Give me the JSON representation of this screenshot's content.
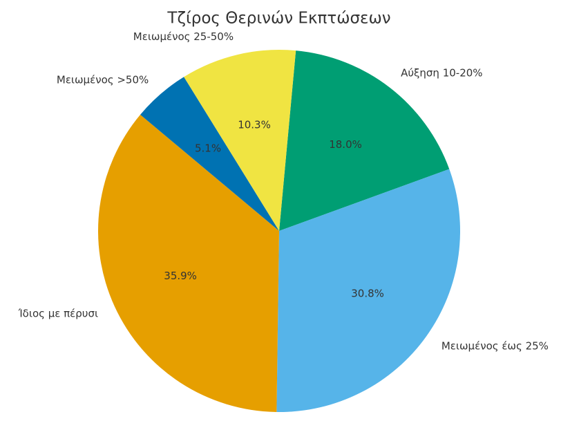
{
  "chart_data": {
    "type": "pie",
    "title": "Τζίρος Θερινών Εκπτώσεων",
    "categories": [
      "Αύξηση 10-20%",
      "Μειωμένος έως 25%",
      "Ίδιος με πέρυσι",
      "Μειωμένος >50%",
      "Μειωμένος 25-50%"
    ],
    "values": [
      18.0,
      30.8,
      35.9,
      5.1,
      10.3
    ],
    "value_labels": [
      "18.0%",
      "30.8%",
      "35.9%",
      "5.1%",
      "10.3%"
    ],
    "colors": [
      "#009E73",
      "#56B4E9",
      "#E69F00",
      "#0072B2",
      "#F0E442"
    ]
  }
}
